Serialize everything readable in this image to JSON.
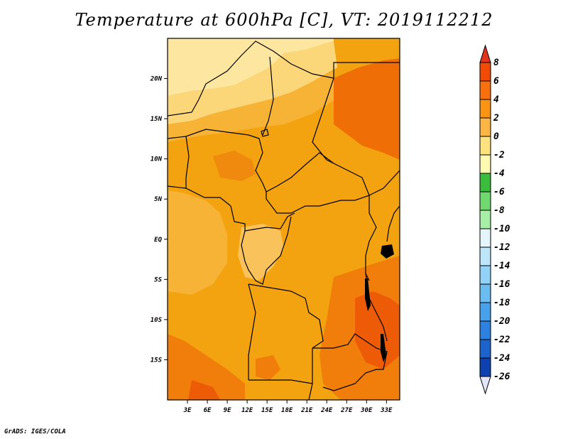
{
  "title": "Temperature at 600hPa [C], VT: 2019112212",
  "credit": "GrADS: IGES/COLA",
  "map": {
    "lon_range": [
      0,
      35
    ],
    "lat_range": [
      -20,
      25
    ],
    "x_ticks": [
      "3E",
      "6E",
      "9E",
      "12E",
      "15E",
      "18E",
      "21E",
      "24E",
      "27E",
      "30E",
      "33E"
    ],
    "y_ticks": [
      "20N",
      "15N",
      "10N",
      "5N",
      "EQ",
      "5S",
      "10S",
      "15S"
    ]
  },
  "colorbar": {
    "labels": [
      "8",
      "6",
      "4",
      "2",
      "0",
      "-2",
      "-4",
      "-6",
      "-8",
      "-10",
      "-12",
      "-14",
      "-16",
      "-18",
      "-20",
      "-22",
      "-24",
      "-26"
    ],
    "colors": [
      "#d81e05",
      "#f14b06",
      "#f7700d",
      "#fb9412",
      "#fdb643",
      "#fde27d",
      "#fff9b2",
      "#3cbc3c",
      "#6fd96f",
      "#a7efa7",
      "#e4f5fb",
      "#bde6fa",
      "#92d2f7",
      "#6bbcf1",
      "#48a2eb",
      "#2d82e1",
      "#1c64cc",
      "#0d41b0",
      "#0a1e78"
    ],
    "arrow_top": "#e2331c",
    "arrow_bottom": "#e1e6fa"
  },
  "field_colors": {
    "warm": "#f2a30f",
    "mid": "#f7b335",
    "cool": "#fcd77a",
    "hot": "#f17d0a",
    "hottest": "#ee5b07",
    "pale": "#fde7a0",
    "lake": "#000000"
  }
}
